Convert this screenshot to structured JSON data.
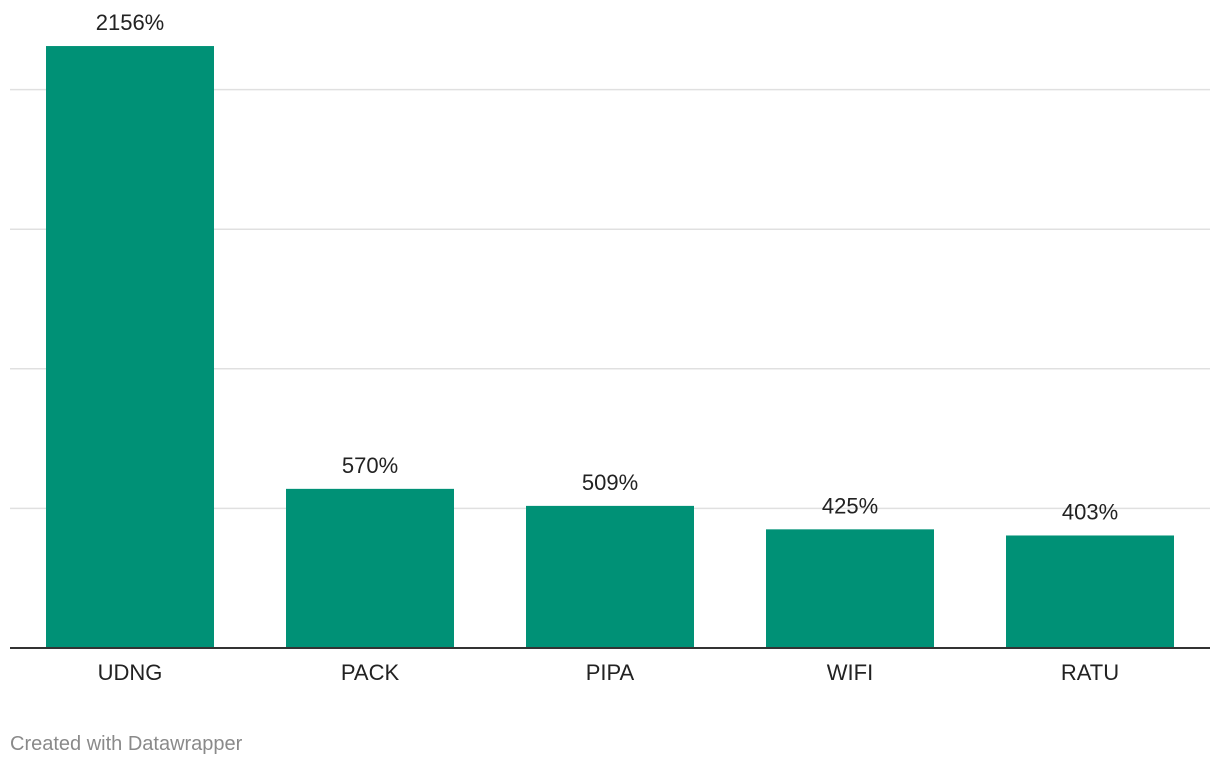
{
  "chart_data": {
    "type": "bar",
    "title": "",
    "xlabel": "",
    "ylabel": "",
    "categories": [
      "UDNG",
      "PACK",
      "PIPA",
      "WIFI",
      "RATU"
    ],
    "values": [
      2156,
      570,
      509,
      425,
      403
    ],
    "value_labels": [
      "2156%",
      "570%",
      "509%",
      "425%",
      "403%"
    ],
    "ylim": [
      0,
      2300
    ],
    "gridlines": [
      500,
      1000,
      1500,
      2000
    ],
    "grid": true,
    "legend": "none",
    "bar_color": "#009176"
  },
  "footer": {
    "credit": "Created with Datawrapper"
  }
}
